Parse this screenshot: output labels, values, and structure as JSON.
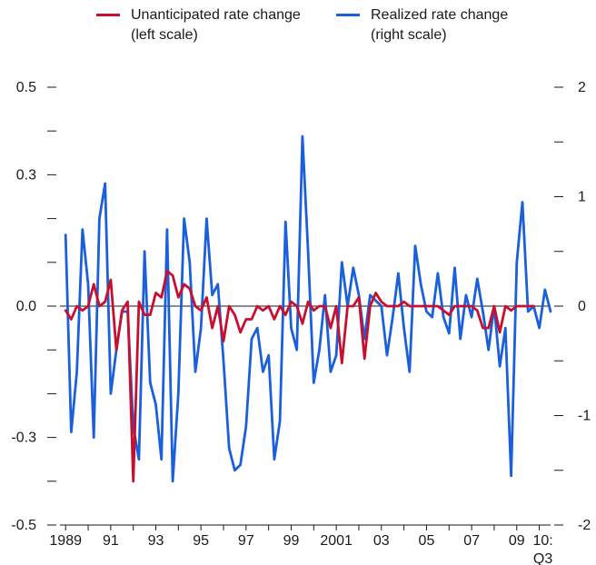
{
  "chart_data": {
    "type": "line",
    "x_start": 1989.0,
    "x_step": 0.25,
    "x_tick_labels": [
      "1989",
      "91",
      "93",
      "95",
      "97",
      "99",
      "2001",
      "03",
      "05",
      "07",
      "09",
      "10:"
    ],
    "x_tick_sublabel": "Q3",
    "left_axis": {
      "ylim": [
        -0.5,
        0.5
      ],
      "labeled_ticks": [
        -0.5,
        -0.3,
        0.0,
        0.3,
        0.5
      ]
    },
    "right_axis": {
      "ylim": [
        -2,
        2
      ],
      "labeled_ticks": [
        -2,
        -1,
        0,
        1,
        2
      ]
    },
    "series": [
      {
        "name": "Unanticipated rate change",
        "name_line2": "(left scale)",
        "axis": "left",
        "color": "#c8102e",
        "values": [
          -0.01,
          -0.03,
          0.0,
          -0.01,
          0.0,
          0.05,
          0.0,
          0.01,
          0.06,
          -0.1,
          -0.01,
          0.01,
          -0.4,
          0.01,
          -0.02,
          -0.02,
          0.03,
          0.02,
          0.08,
          0.07,
          0.02,
          0.05,
          0.04,
          0.0,
          -0.01,
          0.02,
          -0.05,
          0.0,
          -0.08,
          0.0,
          -0.02,
          -0.06,
          -0.03,
          -0.03,
          0.0,
          -0.01,
          0.0,
          -0.03,
          0.0,
          -0.02,
          0.01,
          0.0,
          -0.04,
          0.01,
          -0.01,
          0.0,
          0.0,
          -0.05,
          0.0,
          -0.13,
          0.0,
          0.0,
          0.02,
          -0.12,
          0.0,
          0.03,
          0.01,
          0.0,
          0.0,
          0.0,
          0.01,
          0.0,
          0.0,
          0.0,
          0.0,
          0.0,
          0.0,
          -0.01,
          -0.02,
          0.0,
          0.0,
          0.0,
          0.0,
          -0.01,
          -0.05,
          -0.05,
          0.0,
          -0.06,
          0.0,
          -0.01,
          0.0,
          0.0,
          0.0,
          0.0
        ]
      },
      {
        "name": "Realized rate change",
        "name_line2": "(right scale)",
        "axis": "right",
        "color": "#1a5fdb",
        "values": [
          0.65,
          -1.15,
          -0.6,
          0.7,
          0.2,
          -1.2,
          0.8,
          1.12,
          -0.8,
          -0.4,
          -0.05,
          -0.05,
          -1.1,
          -1.4,
          0.5,
          -0.7,
          -0.9,
          -1.4,
          0.7,
          -1.6,
          -0.8,
          0.8,
          0.4,
          -0.6,
          -0.2,
          0.8,
          0.1,
          0.2,
          -0.5,
          -1.3,
          -1.5,
          -1.45,
          -1.1,
          -0.3,
          -0.2,
          -0.6,
          -0.45,
          -1.4,
          -1.05,
          0.77,
          -0.2,
          -0.4,
          1.55,
          0.5,
          -0.7,
          -0.4,
          0.1,
          -0.6,
          -0.45,
          0.4,
          0.0,
          0.35,
          0.1,
          -0.3,
          0.1,
          0.05,
          0.0,
          -0.45,
          -0.1,
          0.3,
          -0.2,
          -0.6,
          0.55,
          0.2,
          -0.05,
          -0.1,
          0.3,
          -0.1,
          -0.25,
          0.35,
          -0.3,
          0.1,
          -0.1,
          0.25,
          -0.05,
          -0.4,
          0.0,
          -0.55,
          -0.2,
          -1.55,
          0.4,
          0.95,
          -0.05,
          0.0,
          -0.2,
          0.15,
          -0.05
        ]
      }
    ]
  }
}
